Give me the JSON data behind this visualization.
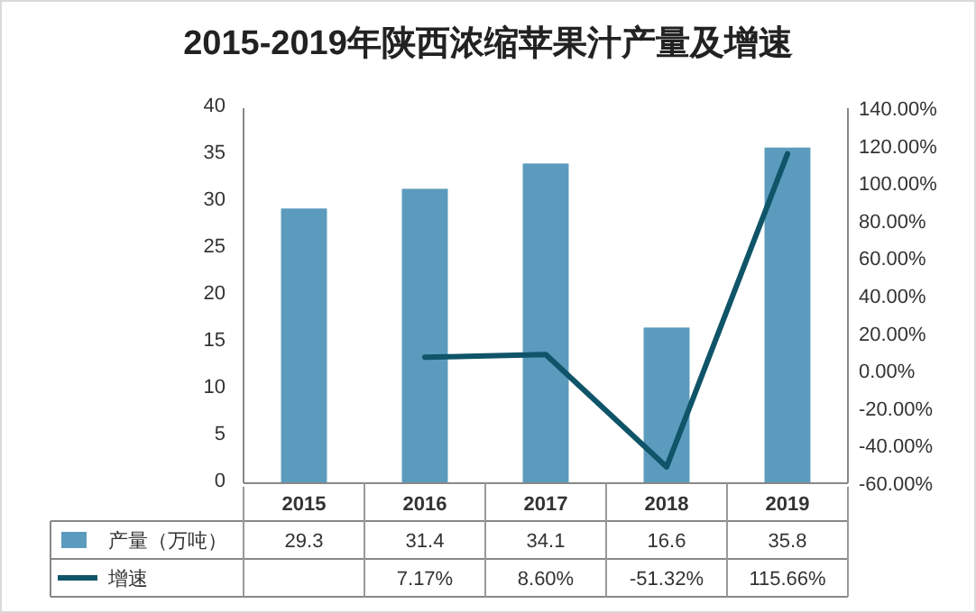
{
  "chart_data": {
    "type": "bar",
    "title": "2015-2019年陕西浓缩苹果汁产量及增速",
    "categories": [
      "2015",
      "2016",
      "2017",
      "2018",
      "2019"
    ],
    "ylim": [
      0,
      40
    ],
    "yticks": [
      0,
      5,
      10,
      15,
      20,
      25,
      30,
      35,
      40
    ],
    "y2lim": [
      -60,
      140
    ],
    "y2ticks": [
      {
        "value": -60,
        "label": "-60.00%"
      },
      {
        "value": -40,
        "label": "-40.00%"
      },
      {
        "value": -20,
        "label": "-20.00%"
      },
      {
        "value": 0,
        "label": "0.00%"
      },
      {
        "value": 20,
        "label": "20.00%"
      },
      {
        "value": 40,
        "label": "40.00%"
      },
      {
        "value": 60,
        "label": "60.00%"
      },
      {
        "value": 80,
        "label": "80.00%"
      },
      {
        "value": 100,
        "label": "100.00%"
      },
      {
        "value": 120,
        "label": "120.00%"
      },
      {
        "value": 140,
        "label": "140.00%"
      }
    ],
    "series": [
      {
        "name": "产量（万吨）",
        "color": "#5b9bbd",
        "values": [
          29.3,
          31.4,
          34.1,
          16.6,
          35.8
        ],
        "value_labels": [
          "29.3",
          "31.4",
          "34.1",
          "16.6",
          "35.8"
        ]
      },
      {
        "name": "增速",
        "type": "line",
        "axis": "y2",
        "color": "#0f5468",
        "values": [
          null,
          7.17,
          8.6,
          -51.32,
          115.66
        ],
        "value_labels": [
          null,
          "7.17%",
          "8.60%",
          "-51.32%",
          "115.66%"
        ]
      }
    ],
    "grid": false,
    "legend": "bottom"
  }
}
